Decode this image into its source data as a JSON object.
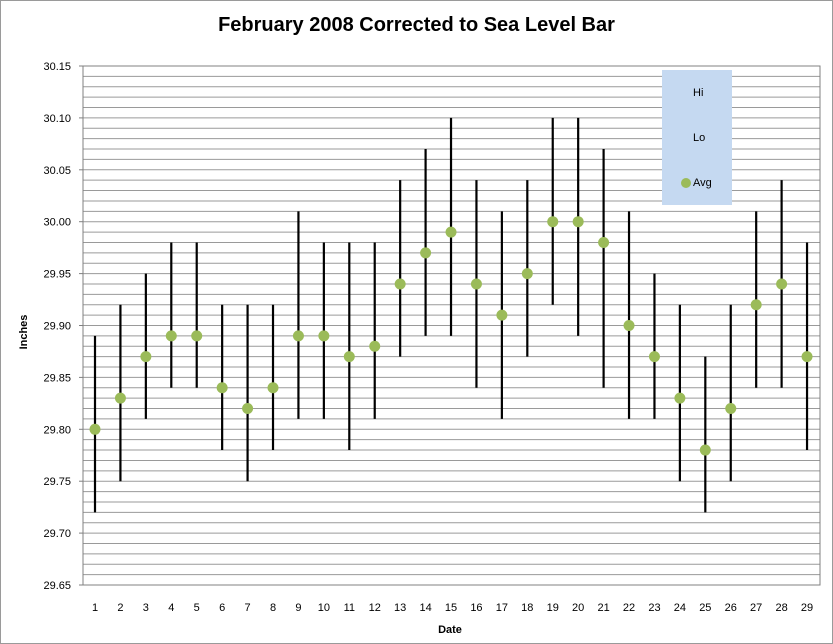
{
  "chart_data": {
    "type": "scatter",
    "title": "February 2008 Corrected to Sea Level Bar",
    "xlabel": "Date",
    "ylabel": "Inches",
    "categories": [
      "1",
      "2",
      "3",
      "4",
      "5",
      "6",
      "7",
      "8",
      "9",
      "10",
      "11",
      "12",
      "13",
      "14",
      "15",
      "16",
      "17",
      "18",
      "19",
      "20",
      "21",
      "22",
      "23",
      "24",
      "25",
      "26",
      "27",
      "28",
      "29"
    ],
    "ylim": [
      29.65,
      30.15
    ],
    "y_ticks": [
      "29.65",
      "29.70",
      "29.75",
      "29.80",
      "29.85",
      "29.90",
      "29.95",
      "30.00",
      "30.05",
      "30.10",
      "30.15"
    ],
    "grid": true,
    "legend_position": "top-right",
    "series": [
      {
        "name": "Hi",
        "values": [
          29.89,
          29.92,
          29.95,
          29.98,
          29.98,
          29.92,
          29.92,
          29.92,
          30.01,
          29.98,
          29.98,
          29.98,
          30.04,
          30.07,
          30.1,
          30.04,
          30.01,
          30.04,
          30.1,
          30.1,
          30.07,
          30.01,
          29.95,
          29.92,
          29.87,
          29.92,
          30.01,
          30.04,
          29.98
        ]
      },
      {
        "name": "Lo",
        "values": [
          29.72,
          29.75,
          29.81,
          29.84,
          29.84,
          29.78,
          29.75,
          29.78,
          29.81,
          29.81,
          29.78,
          29.81,
          29.87,
          29.89,
          29.89,
          29.84,
          29.81,
          29.87,
          29.92,
          29.89,
          29.84,
          29.81,
          29.81,
          29.75,
          29.72,
          29.75,
          29.84,
          29.84,
          29.78
        ]
      },
      {
        "name": "Avg",
        "values": [
          29.8,
          29.83,
          29.87,
          29.89,
          29.89,
          29.84,
          29.82,
          29.84,
          29.89,
          29.89,
          29.87,
          29.88,
          29.94,
          29.97,
          29.99,
          29.94,
          29.91,
          29.95,
          30.0,
          30.0,
          29.98,
          29.9,
          29.87,
          29.83,
          29.78,
          29.82,
          29.92,
          29.94,
          29.87
        ]
      }
    ],
    "colors": {
      "range_line": "#000000",
      "avg_marker": "#9bbb59",
      "legend_bg": "#c5d9f1",
      "grid": "#9a9a9a"
    }
  }
}
